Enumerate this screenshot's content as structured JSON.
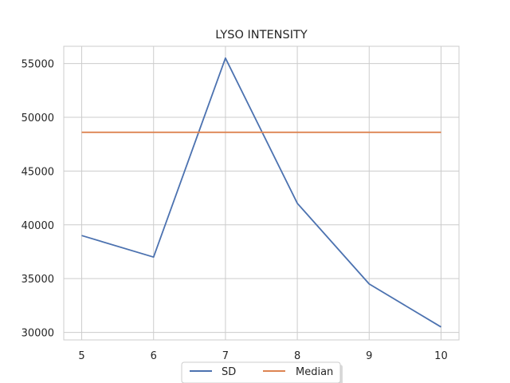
{
  "chart_data": {
    "type": "line",
    "title": "LYSO INTENSITY",
    "xlabel": "",
    "ylabel": "",
    "x": [
      5,
      6,
      7,
      8,
      9,
      10
    ],
    "xticks": [
      "5",
      "6",
      "7",
      "8",
      "9",
      "10"
    ],
    "yticks": [
      "30000",
      "35000",
      "40000",
      "45000",
      "50000",
      "55000"
    ],
    "ytick_values": [
      30000,
      35000,
      40000,
      45000,
      50000,
      55000
    ],
    "xlim": [
      4.75,
      10.25
    ],
    "ylim": [
      29300,
      56600
    ],
    "grid": true,
    "legend_placement": "bottom-center",
    "series": [
      {
        "name": "SD",
        "color": "#4c72b0",
        "values": [
          39000,
          37000,
          55500,
          42000,
          34500,
          30500
        ]
      },
      {
        "name": "Median",
        "color": "#dd8452",
        "values": [
          48600,
          48600,
          48600,
          48600,
          48600,
          48600
        ]
      }
    ]
  }
}
